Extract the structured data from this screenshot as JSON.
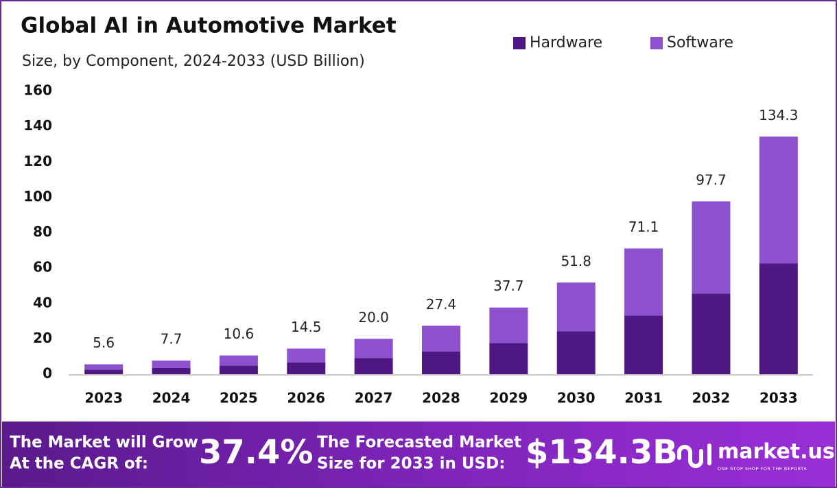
{
  "chart_data": {
    "type": "stacked-bar",
    "title": "Global AI in Automotive Market",
    "subtitle": "Size, by Component, 2024-2033 (USD Billion)",
    "categories": [
      "2023",
      "2024",
      "2025",
      "2026",
      "2027",
      "2028",
      "2029",
      "2030",
      "2031",
      "2032",
      "2033"
    ],
    "series": [
      {
        "name": "Hardware",
        "color": "#4f1782",
        "values": [
          2.6,
          3.6,
          4.9,
          6.7,
          9.2,
          12.8,
          17.6,
          24.2,
          33.1,
          45.6,
          62.7
        ]
      },
      {
        "name": "Software",
        "color": "#8d50cf",
        "values": [
          3.0,
          4.1,
          5.7,
          7.8,
          10.8,
          14.6,
          20.1,
          27.6,
          38.0,
          52.1,
          71.6
        ]
      }
    ],
    "totals": {
      "values": [
        5.6,
        7.7,
        10.6,
        14.5,
        20.0,
        27.4,
        37.7,
        51.8,
        71.1,
        97.7,
        134.3
      ],
      "value_labels": [
        "5.6",
        "7.7",
        "10.6",
        "14.5",
        "20.0",
        "27.4",
        "37.7",
        "51.8",
        "71.1",
        "97.7",
        "134.3"
      ]
    },
    "ylim": [
      0,
      160
    ],
    "yticks": [
      0,
      20,
      40,
      60,
      80,
      100,
      120,
      140,
      160
    ],
    "grid": false,
    "legend": "top-right"
  },
  "footer": {
    "cagr_text_1": "The Market will Grow",
    "cagr_text_2": "At the CAGR of:",
    "cagr_value": "37.4%",
    "forecast_text_1": "The Forecasted Market",
    "forecast_text_2": "Size for 2033 in USD:",
    "forecast_value": "$134.3B",
    "brand": "market.us",
    "tagline": "ONE STOP SHOP FOR THE REPORTS"
  }
}
